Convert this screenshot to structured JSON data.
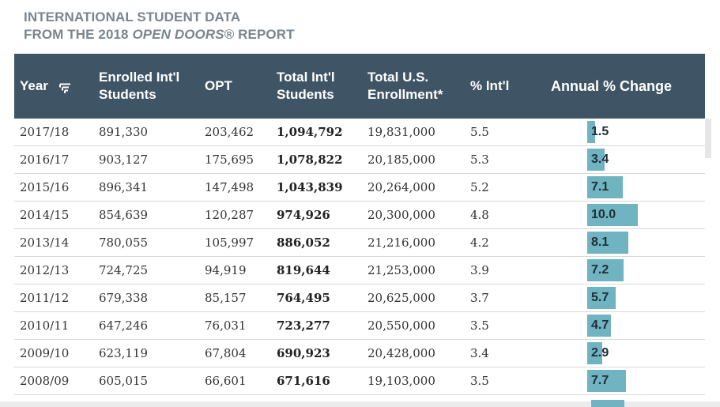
{
  "heading": {
    "line1": "INTERNATIONAL STUDENT DATA",
    "line2_prefix": "FROM THE 2018 ",
    "line2_italic": "OPEN DOORS",
    "line2_suffix": "® REPORT"
  },
  "table": {
    "columns": {
      "year": "Year",
      "enrolled_1": "Enrolled Int'l",
      "enrolled_2": "Students",
      "opt": "OPT",
      "total_intl_1": "Total Int'l",
      "total_intl_2": "Students",
      "total_us_1": "Total U.S.",
      "total_us_2": "Enrollment*",
      "pct_intl": "% Int'l",
      "annual_change": "Annual % Change"
    },
    "rows": [
      {
        "year": "2017/18",
        "enrolled": "891,330",
        "opt": "203,462",
        "total_intl": "1,094,792",
        "total_us": "19,831,000",
        "pct": "5.5",
        "change": "1.5",
        "change_value": 1.5
      },
      {
        "year": "2016/17",
        "enrolled": "903,127",
        "opt": "175,695",
        "total_intl": "1,078,822",
        "total_us": "20,185,000",
        "pct": "5.3",
        "change": "3.4",
        "change_value": 3.4
      },
      {
        "year": "2015/16",
        "enrolled": "896,341",
        "opt": "147,498",
        "total_intl": "1,043,839",
        "total_us": "20,264,000",
        "pct": "5.2",
        "change": "7.1",
        "change_value": 7.1
      },
      {
        "year": "2014/15",
        "enrolled": "854,639",
        "opt": "120,287",
        "total_intl": "974,926",
        "total_us": "20,300,000",
        "pct": "4.8",
        "change": "10.0",
        "change_value": 10.0
      },
      {
        "year": "2013/14",
        "enrolled": "780,055",
        "opt": "105,997",
        "total_intl": "886,052",
        "total_us": "21,216,000",
        "pct": "4.2",
        "change": "8.1",
        "change_value": 8.1
      },
      {
        "year": "2012/13",
        "enrolled": "724,725",
        "opt": "94,919",
        "total_intl": "819,644",
        "total_us": "21,253,000",
        "pct": "3.9",
        "change": "7.2",
        "change_value": 7.2
      },
      {
        "year": "2011/12",
        "enrolled": "679,338",
        "opt": "85,157",
        "total_intl": "764,495",
        "total_us": "20,625,000",
        "pct": "3.7",
        "change": "5.7",
        "change_value": 5.7
      },
      {
        "year": "2010/11",
        "enrolled": "647,246",
        "opt": "76,031",
        "total_intl": "723,277",
        "total_us": "20,550,000",
        "pct": "3.5",
        "change": "4.7",
        "change_value": 4.7
      },
      {
        "year": "2009/10",
        "enrolled": "623,119",
        "opt": "67,804",
        "total_intl": "690,923",
        "total_us": "20,428,000",
        "pct": "3.4",
        "change": "2.9",
        "change_value": 2.9
      },
      {
        "year": "2008/09",
        "enrolled": "605,015",
        "opt": "66,601",
        "total_intl": "671,616",
        "total_us": "19,103,000",
        "pct": "3.5",
        "change": "7.7",
        "change_value": 7.7
      }
    ]
  },
  "icons": {
    "sort": "sort-filter-icon"
  },
  "colors": {
    "header_bg": "#3f5566",
    "bar": "#6fb4c0",
    "heading_text": "#7a858d"
  }
}
